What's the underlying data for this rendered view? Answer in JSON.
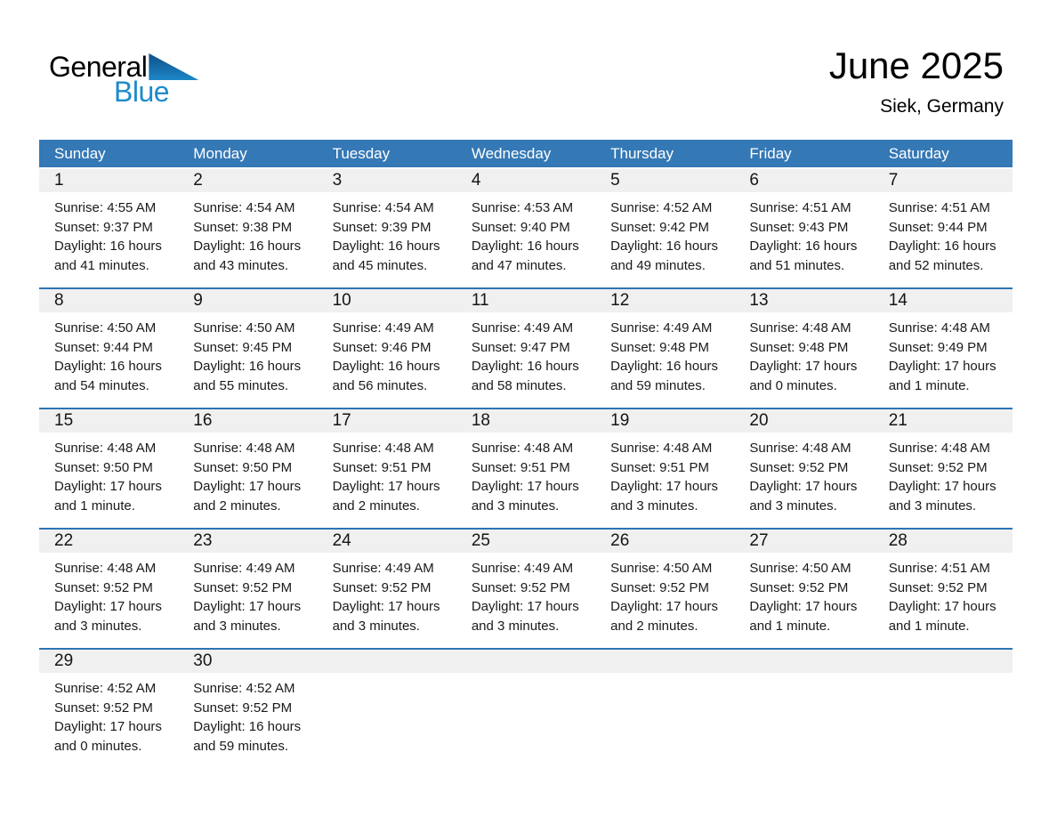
{
  "logo": {
    "general": "General",
    "blue": "Blue"
  },
  "header": {
    "month_year": "June 2025",
    "location": "Siek, Germany"
  },
  "colors": {
    "header_blue": "#3478B5",
    "separator_blue": "#2E74B5",
    "number_band_gray": "#F0F0F0",
    "logo_blue": "#1E8BCB"
  },
  "calendar": {
    "day_names": [
      "Sunday",
      "Monday",
      "Tuesday",
      "Wednesday",
      "Thursday",
      "Friday",
      "Saturday"
    ],
    "weeks": [
      {
        "days": [
          {
            "num": "1",
            "sunrise": "Sunrise: 4:55 AM",
            "sunset": "Sunset: 9:37 PM",
            "daylight1": "Daylight: 16 hours",
            "daylight2": "and 41 minutes."
          },
          {
            "num": "2",
            "sunrise": "Sunrise: 4:54 AM",
            "sunset": "Sunset: 9:38 PM",
            "daylight1": "Daylight: 16 hours",
            "daylight2": "and 43 minutes."
          },
          {
            "num": "3",
            "sunrise": "Sunrise: 4:54 AM",
            "sunset": "Sunset: 9:39 PM",
            "daylight1": "Daylight: 16 hours",
            "daylight2": "and 45 minutes."
          },
          {
            "num": "4",
            "sunrise": "Sunrise: 4:53 AM",
            "sunset": "Sunset: 9:40 PM",
            "daylight1": "Daylight: 16 hours",
            "daylight2": "and 47 minutes."
          },
          {
            "num": "5",
            "sunrise": "Sunrise: 4:52 AM",
            "sunset": "Sunset: 9:42 PM",
            "daylight1": "Daylight: 16 hours",
            "daylight2": "and 49 minutes."
          },
          {
            "num": "6",
            "sunrise": "Sunrise: 4:51 AM",
            "sunset": "Sunset: 9:43 PM",
            "daylight1": "Daylight: 16 hours",
            "daylight2": "and 51 minutes."
          },
          {
            "num": "7",
            "sunrise": "Sunrise: 4:51 AM",
            "sunset": "Sunset: 9:44 PM",
            "daylight1": "Daylight: 16 hours",
            "daylight2": "and 52 minutes."
          }
        ]
      },
      {
        "days": [
          {
            "num": "8",
            "sunrise": "Sunrise: 4:50 AM",
            "sunset": "Sunset: 9:44 PM",
            "daylight1": "Daylight: 16 hours",
            "daylight2": "and 54 minutes."
          },
          {
            "num": "9",
            "sunrise": "Sunrise: 4:50 AM",
            "sunset": "Sunset: 9:45 PM",
            "daylight1": "Daylight: 16 hours",
            "daylight2": "and 55 minutes."
          },
          {
            "num": "10",
            "sunrise": "Sunrise: 4:49 AM",
            "sunset": "Sunset: 9:46 PM",
            "daylight1": "Daylight: 16 hours",
            "daylight2": "and 56 minutes."
          },
          {
            "num": "11",
            "sunrise": "Sunrise: 4:49 AM",
            "sunset": "Sunset: 9:47 PM",
            "daylight1": "Daylight: 16 hours",
            "daylight2": "and 58 minutes."
          },
          {
            "num": "12",
            "sunrise": "Sunrise: 4:49 AM",
            "sunset": "Sunset: 9:48 PM",
            "daylight1": "Daylight: 16 hours",
            "daylight2": "and 59 minutes."
          },
          {
            "num": "13",
            "sunrise": "Sunrise: 4:48 AM",
            "sunset": "Sunset: 9:48 PM",
            "daylight1": "Daylight: 17 hours",
            "daylight2": "and 0 minutes."
          },
          {
            "num": "14",
            "sunrise": "Sunrise: 4:48 AM",
            "sunset": "Sunset: 9:49 PM",
            "daylight1": "Daylight: 17 hours",
            "daylight2": "and 1 minute."
          }
        ]
      },
      {
        "days": [
          {
            "num": "15",
            "sunrise": "Sunrise: 4:48 AM",
            "sunset": "Sunset: 9:50 PM",
            "daylight1": "Daylight: 17 hours",
            "daylight2": "and 1 minute."
          },
          {
            "num": "16",
            "sunrise": "Sunrise: 4:48 AM",
            "sunset": "Sunset: 9:50 PM",
            "daylight1": "Daylight: 17 hours",
            "daylight2": "and 2 minutes."
          },
          {
            "num": "17",
            "sunrise": "Sunrise: 4:48 AM",
            "sunset": "Sunset: 9:51 PM",
            "daylight1": "Daylight: 17 hours",
            "daylight2": "and 2 minutes."
          },
          {
            "num": "18",
            "sunrise": "Sunrise: 4:48 AM",
            "sunset": "Sunset: 9:51 PM",
            "daylight1": "Daylight: 17 hours",
            "daylight2": "and 3 minutes."
          },
          {
            "num": "19",
            "sunrise": "Sunrise: 4:48 AM",
            "sunset": "Sunset: 9:51 PM",
            "daylight1": "Daylight: 17 hours",
            "daylight2": "and 3 minutes."
          },
          {
            "num": "20",
            "sunrise": "Sunrise: 4:48 AM",
            "sunset": "Sunset: 9:52 PM",
            "daylight1": "Daylight: 17 hours",
            "daylight2": "and 3 minutes."
          },
          {
            "num": "21",
            "sunrise": "Sunrise: 4:48 AM",
            "sunset": "Sunset: 9:52 PM",
            "daylight1": "Daylight: 17 hours",
            "daylight2": "and 3 minutes."
          }
        ]
      },
      {
        "days": [
          {
            "num": "22",
            "sunrise": "Sunrise: 4:48 AM",
            "sunset": "Sunset: 9:52 PM",
            "daylight1": "Daylight: 17 hours",
            "daylight2": "and 3 minutes."
          },
          {
            "num": "23",
            "sunrise": "Sunrise: 4:49 AM",
            "sunset": "Sunset: 9:52 PM",
            "daylight1": "Daylight: 17 hours",
            "daylight2": "and 3 minutes."
          },
          {
            "num": "24",
            "sunrise": "Sunrise: 4:49 AM",
            "sunset": "Sunset: 9:52 PM",
            "daylight1": "Daylight: 17 hours",
            "daylight2": "and 3 minutes."
          },
          {
            "num": "25",
            "sunrise": "Sunrise: 4:49 AM",
            "sunset": "Sunset: 9:52 PM",
            "daylight1": "Daylight: 17 hours",
            "daylight2": "and 3 minutes."
          },
          {
            "num": "26",
            "sunrise": "Sunrise: 4:50 AM",
            "sunset": "Sunset: 9:52 PM",
            "daylight1": "Daylight: 17 hours",
            "daylight2": "and 2 minutes."
          },
          {
            "num": "27",
            "sunrise": "Sunrise: 4:50 AM",
            "sunset": "Sunset: 9:52 PM",
            "daylight1": "Daylight: 17 hours",
            "daylight2": "and 1 minute."
          },
          {
            "num": "28",
            "sunrise": "Sunrise: 4:51 AM",
            "sunset": "Sunset: 9:52 PM",
            "daylight1": "Daylight: 17 hours",
            "daylight2": "and 1 minute."
          }
        ]
      },
      {
        "days": [
          {
            "num": "29",
            "sunrise": "Sunrise: 4:52 AM",
            "sunset": "Sunset: 9:52 PM",
            "daylight1": "Daylight: 17 hours",
            "daylight2": "and 0 minutes."
          },
          {
            "num": "30",
            "sunrise": "Sunrise: 4:52 AM",
            "sunset": "Sunset: 9:52 PM",
            "daylight1": "Daylight: 16 hours",
            "daylight2": "and 59 minutes."
          },
          null,
          null,
          null,
          null,
          null
        ]
      }
    ]
  }
}
